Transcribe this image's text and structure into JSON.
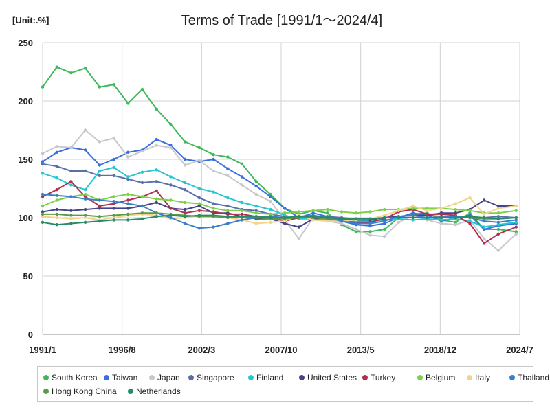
{
  "chart_data": {
    "type": "line",
    "title": "Terms of Trade [1991/1～2024/4]",
    "unit_label": "[Unit:.%]",
    "ylim": [
      0,
      250
    ],
    "yticks": [
      0,
      50,
      100,
      150,
      200,
      250
    ],
    "xlim": [
      "1991-01",
      "2024-07"
    ],
    "xtick_labels": [
      "1991/1",
      "1996/8",
      "2002/3",
      "2007/10",
      "2013/5",
      "2018/12",
      "2024/7"
    ],
    "grid": "horizontal and vertical",
    "legend_position": "bottom",
    "series": [
      {
        "name": "South Korea",
        "color": "#3cb95a",
        "x": [
          "1991-01",
          "1992-01",
          "1993-01",
          "1994-01",
          "1995-01",
          "1996-01",
          "1997-01",
          "1998-01",
          "1999-01",
          "2000-01",
          "2001-01",
          "2002-01",
          "2003-01",
          "2004-01",
          "2005-01",
          "2006-01",
          "2007-01",
          "2008-01",
          "2009-01",
          "2010-01",
          "2011-01",
          "2012-01",
          "2013-01",
          "2014-01",
          "2015-01",
          "2016-01",
          "2017-01",
          "2018-01",
          "2019-01",
          "2020-01",
          "2021-01",
          "2022-01",
          "2023-01",
          "2024-04"
        ],
        "values": [
          212,
          229,
          224,
          228,
          212,
          214,
          198,
          210,
          193,
          180,
          165,
          160,
          154,
          152,
          146,
          131,
          120,
          108,
          103,
          106,
          104,
          94,
          88,
          88,
          90,
          100,
          103,
          104,
          98,
          96,
          104,
          90,
          90,
          88
        ]
      },
      {
        "name": "Taiwan",
        "color": "#3a6ee0",
        "x": [
          "1991-01",
          "1992-01",
          "1993-01",
          "1994-01",
          "1995-01",
          "1996-01",
          "1997-01",
          "1998-01",
          "1999-01",
          "2000-01",
          "2001-01",
          "2002-01",
          "2003-01",
          "2004-01",
          "2005-01",
          "2006-01",
          "2007-01",
          "2008-01",
          "2009-01",
          "2010-01",
          "2011-01",
          "2012-01",
          "2013-01",
          "2014-01",
          "2015-01",
          "2016-01",
          "2017-01",
          "2018-01",
          "2019-01",
          "2020-01",
          "2021-01",
          "2022-01",
          "2023-01",
          "2024-04"
        ],
        "values": [
          148,
          156,
          160,
          158,
          145,
          150,
          156,
          158,
          167,
          162,
          150,
          148,
          150,
          142,
          135,
          127,
          118,
          108,
          100,
          104,
          101,
          97,
          94,
          93,
          95,
          100,
          104,
          102,
          97,
          100,
          102,
          90,
          93,
          95
        ]
      },
      {
        "name": "Japan",
        "color": "#c8c8c8",
        "x": [
          "1991-01",
          "1992-01",
          "1993-01",
          "1994-01",
          "1995-01",
          "1996-01",
          "1997-01",
          "1998-01",
          "1999-01",
          "2000-01",
          "2001-01",
          "2002-01",
          "2003-01",
          "2004-01",
          "2005-01",
          "2006-01",
          "2007-01",
          "2008-01",
          "2009-01",
          "2010-01",
          "2011-01",
          "2012-01",
          "2013-01",
          "2014-01",
          "2015-01",
          "2016-01",
          "2017-01",
          "2018-01",
          "2019-01",
          "2020-01",
          "2021-01",
          "2022-01",
          "2023-01",
          "2024-04"
        ],
        "values": [
          155,
          161,
          160,
          175,
          165,
          168,
          152,
          157,
          162,
          160,
          145,
          149,
          140,
          136,
          128,
          120,
          114,
          98,
          82,
          100,
          97,
          95,
          90,
          85,
          84,
          96,
          102,
          98,
          95,
          94,
          98,
          82,
          72,
          86
        ]
      },
      {
        "name": "Singapore",
        "color": "#5a6fa8",
        "x": [
          "1991-01",
          "1992-01",
          "1993-01",
          "1994-01",
          "1995-01",
          "1996-01",
          "1997-01",
          "1998-01",
          "1999-01",
          "2000-01",
          "2001-01",
          "2002-01",
          "2003-01",
          "2004-01",
          "2005-01",
          "2006-01",
          "2007-01",
          "2008-01",
          "2009-01",
          "2010-01",
          "2011-01",
          "2012-01",
          "2013-01",
          "2014-01",
          "2015-01",
          "2016-01",
          "2017-01",
          "2018-01",
          "2019-01",
          "2020-01",
          "2021-01",
          "2022-01",
          "2023-01",
          "2024-04"
        ],
        "values": [
          146,
          144,
          140,
          140,
          136,
          136,
          133,
          130,
          131,
          128,
          124,
          117,
          112,
          110,
          107,
          106,
          103,
          101,
          99,
          100,
          101,
          100,
          99,
          99,
          100,
          101,
          102,
          102,
          101,
          100,
          100,
          100,
          101,
          100
        ]
      },
      {
        "name": "Finland",
        "color": "#26c6d0",
        "x": [
          "1991-01",
          "1992-01",
          "1993-01",
          "1994-01",
          "1995-01",
          "1996-01",
          "1997-01",
          "1998-01",
          "1999-01",
          "2000-01",
          "2001-01",
          "2002-01",
          "2003-01",
          "2004-01",
          "2005-01",
          "2006-01",
          "2007-01",
          "2008-01",
          "2009-01",
          "2010-01",
          "2011-01",
          "2012-01",
          "2013-01",
          "2014-01",
          "2015-01",
          "2016-01",
          "2017-01",
          "2018-01",
          "2019-01",
          "2020-01",
          "2021-01",
          "2022-01",
          "2023-01",
          "2024-04"
        ],
        "values": [
          138,
          134,
          128,
          124,
          140,
          143,
          135,
          139,
          141,
          135,
          130,
          125,
          122,
          117,
          113,
          110,
          107,
          102,
          99,
          99,
          98,
          97,
          97,
          97,
          98,
          99,
          98,
          99,
          98,
          99,
          97,
          92,
          94,
          96
        ]
      },
      {
        "name": "United States",
        "color": "#44448a",
        "x": [
          "1991-01",
          "1992-01",
          "1993-01",
          "1994-01",
          "1995-01",
          "1996-01",
          "1997-01",
          "1998-01",
          "1999-01",
          "2000-01",
          "2001-01",
          "2002-01",
          "2003-01",
          "2004-01",
          "2005-01",
          "2006-01",
          "2007-01",
          "2008-01",
          "2009-01",
          "2010-01",
          "2011-01",
          "2012-01",
          "2013-01",
          "2014-01",
          "2015-01",
          "2016-01",
          "2017-01",
          "2018-01",
          "2019-01",
          "2020-01",
          "2021-01",
          "2022-01",
          "2023-01",
          "2024-04"
        ],
        "values": [
          105,
          107,
          106,
          107,
          108,
          108,
          108,
          110,
          113,
          108,
          107,
          110,
          104,
          104,
          101,
          99,
          99,
          95,
          92,
          99,
          100,
          98,
          98,
          98,
          100,
          101,
          102,
          102,
          104,
          104,
          107,
          115,
          110,
          110
        ]
      },
      {
        "name": "Turkey",
        "color": "#b03050",
        "x": [
          "1991-01",
          "1992-01",
          "1993-01",
          "1994-01",
          "1995-01",
          "1996-01",
          "1997-01",
          "1998-01",
          "1999-01",
          "2000-01",
          "2001-01",
          "2002-01",
          "2003-01",
          "2004-01",
          "2005-01",
          "2006-01",
          "2007-01",
          "2008-01",
          "2009-01",
          "2010-01",
          "2011-01",
          "2012-01",
          "2013-01",
          "2014-01",
          "2015-01",
          "2016-01",
          "2017-01",
          "2018-01",
          "2019-01",
          "2020-01",
          "2021-01",
          "2022-01",
          "2023-01",
          "2024-04"
        ],
        "values": [
          118,
          124,
          131,
          118,
          110,
          112,
          115,
          118,
          123,
          108,
          104,
          106,
          105,
          103,
          103,
          101,
          100,
          97,
          100,
          101,
          99,
          97,
          96,
          96,
          99,
          105,
          107,
          103,
          103,
          102,
          95,
          78,
          86,
          92
        ]
      },
      {
        "name": "Belgium",
        "color": "#7ed04a",
        "x": [
          "1991-01",
          "1992-01",
          "1993-01",
          "1994-01",
          "1995-01",
          "1996-01",
          "1997-01",
          "1998-01",
          "1999-01",
          "2000-01",
          "2001-01",
          "2002-01",
          "2003-01",
          "2004-01",
          "2005-01",
          "2006-01",
          "2007-01",
          "2008-01",
          "2009-01",
          "2010-01",
          "2011-01",
          "2012-01",
          "2013-01",
          "2014-01",
          "2015-01",
          "2016-01",
          "2017-01",
          "2018-01",
          "2019-01",
          "2020-01",
          "2021-01",
          "2022-01",
          "2023-01",
          "2024-04"
        ],
        "values": [
          110,
          115,
          118,
          120,
          115,
          118,
          120,
          118,
          116,
          115,
          113,
          112,
          108,
          106,
          106,
          104,
          103,
          104,
          105,
          106,
          107,
          105,
          104,
          105,
          107,
          107,
          108,
          108,
          108,
          107,
          106,
          104,
          104,
          106
        ]
      },
      {
        "name": "Italy",
        "color": "#f2d48a",
        "x": [
          "1991-01",
          "1992-01",
          "1993-01",
          "1994-01",
          "1995-01",
          "1996-01",
          "1997-01",
          "1998-01",
          "1999-01",
          "2000-01",
          "2001-01",
          "2002-01",
          "2003-01",
          "2004-01",
          "2005-01",
          "2006-01",
          "2007-01",
          "2008-01",
          "2009-01",
          "2010-01",
          "2011-01",
          "2012-01",
          "2013-01",
          "2014-01",
          "2015-01",
          "2016-01",
          "2017-01",
          "2018-01",
          "2019-01",
          "2020-01",
          "2021-01",
          "2022-01",
          "2023-01",
          "2024-04"
        ],
        "values": [
          101,
          100,
          99,
          100,
          98,
          100,
          102,
          103,
          102,
          99,
          100,
          102,
          101,
          100,
          98,
          95,
          96,
          97,
          102,
          98,
          97,
          97,
          98,
          99,
          102,
          106,
          110,
          106,
          108,
          112,
          117,
          103,
          108,
          110
        ]
      },
      {
        "name": "Thailand",
        "color": "#3a80c8",
        "x": [
          "1991-01",
          "1992-01",
          "1993-01",
          "1994-01",
          "1995-01",
          "1996-01",
          "1997-01",
          "1998-01",
          "1999-01",
          "2000-01",
          "2001-01",
          "2002-01",
          "2003-01",
          "2004-01",
          "2005-01",
          "2006-01",
          "2007-01",
          "2008-01",
          "2009-01",
          "2010-01",
          "2011-01",
          "2012-01",
          "2013-01",
          "2014-01",
          "2015-01",
          "2016-01",
          "2017-01",
          "2018-01",
          "2019-01",
          "2020-01",
          "2021-01",
          "2022-01",
          "2023-01",
          "2024-04"
        ],
        "values": [
          120,
          119,
          118,
          116,
          115,
          114,
          112,
          110,
          104,
          100,
          95,
          91,
          92,
          95,
          98,
          100,
          101,
          100,
          101,
          102,
          100,
          97,
          95,
          95,
          97,
          101,
          102,
          100,
          100,
          101,
          100,
          97,
          96,
          98
        ]
      },
      {
        "name": "Hong Kong China",
        "color": "#5a9a48",
        "x": [
          "1991-01",
          "1992-01",
          "1993-01",
          "1994-01",
          "1995-01",
          "1996-01",
          "1997-01",
          "1998-01",
          "1999-01",
          "2000-01",
          "2001-01",
          "2002-01",
          "2003-01",
          "2004-01",
          "2005-01",
          "2006-01",
          "2007-01",
          "2008-01",
          "2009-01",
          "2010-01",
          "2011-01",
          "2012-01",
          "2013-01",
          "2014-01",
          "2015-01",
          "2016-01",
          "2017-01",
          "2018-01",
          "2019-01",
          "2020-01",
          "2021-01",
          "2022-01",
          "2023-01",
          "2024-04"
        ],
        "values": [
          103,
          103,
          102,
          102,
          101,
          102,
          103,
          104,
          104,
          103,
          102,
          101,
          101,
          100,
          100,
          100,
          99,
          99,
          100,
          100,
          99,
          99,
          99,
          99,
          100,
          100,
          100,
          100,
          100,
          100,
          100,
          99,
          99,
          100
        ]
      },
      {
        "name": "Netherlands",
        "color": "#2a8a68",
        "x": [
          "1991-01",
          "1992-01",
          "1993-01",
          "1994-01",
          "1995-01",
          "1996-01",
          "1997-01",
          "1998-01",
          "1999-01",
          "2000-01",
          "2001-01",
          "2002-01",
          "2003-01",
          "2004-01",
          "2005-01",
          "2006-01",
          "2007-01",
          "2008-01",
          "2009-01",
          "2010-01",
          "2011-01",
          "2012-01",
          "2013-01",
          "2014-01",
          "2015-01",
          "2016-01",
          "2017-01",
          "2018-01",
          "2019-01",
          "2020-01",
          "2021-01",
          "2022-01",
          "2023-01",
          "2024-04"
        ],
        "values": [
          96,
          94,
          95,
          96,
          97,
          98,
          98,
          99,
          101,
          102,
          101,
          102,
          102,
          101,
          101,
          101,
          100,
          100,
          101,
          101,
          100,
          99,
          99,
          99,
          100,
          100,
          100,
          100,
          100,
          100,
          101,
          100,
          99,
          100
        ]
      }
    ]
  }
}
